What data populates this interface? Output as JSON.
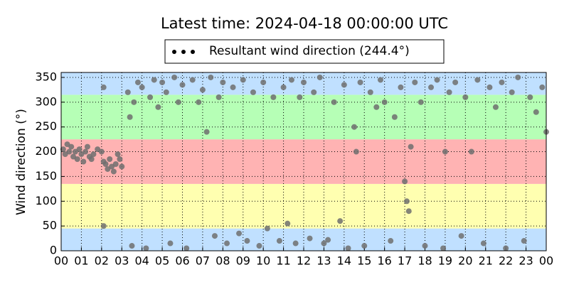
{
  "chart_data": {
    "type": "scatter",
    "title": "Latest time: 2024-04-18 00:00:00 UTC",
    "y_label": "Wind direction (°)",
    "xlim": [
      0,
      24
    ],
    "ylim": [
      0,
      360
    ],
    "xticks": [
      {
        "value": 0,
        "label": "00"
      },
      {
        "value": 1,
        "label": "01"
      },
      {
        "value": 2,
        "label": "02"
      },
      {
        "value": 3,
        "label": "03"
      },
      {
        "value": 4,
        "label": "04"
      },
      {
        "value": 5,
        "label": "05"
      },
      {
        "value": 6,
        "label": "06"
      },
      {
        "value": 7,
        "label": "07"
      },
      {
        "value": 8,
        "label": "08"
      },
      {
        "value": 9,
        "label": "09"
      },
      {
        "value": 10,
        "label": "10"
      },
      {
        "value": 11,
        "label": "11"
      },
      {
        "value": 12,
        "label": "12"
      },
      {
        "value": 13,
        "label": "13"
      },
      {
        "value": 14,
        "label": "14"
      },
      {
        "value": 15,
        "label": "15"
      },
      {
        "value": 16,
        "label": "16"
      },
      {
        "value": 17,
        "label": "17"
      },
      {
        "value": 18,
        "label": "18"
      },
      {
        "value": 19,
        "label": "19"
      },
      {
        "value": 20,
        "label": "20"
      },
      {
        "value": 21,
        "label": "21"
      },
      {
        "value": 22,
        "label": "22"
      },
      {
        "value": 23,
        "label": "23"
      },
      {
        "value": 24,
        "label": "00"
      }
    ],
    "yticks": [
      0,
      50,
      100,
      150,
      200,
      250,
      300,
      350
    ],
    "grid": true,
    "legend": "upper center",
    "bands": [
      {
        "from": 0,
        "to": 45,
        "color": "#c0e0ff"
      },
      {
        "from": 45,
        "to": 135,
        "color": "#ffffb0"
      },
      {
        "from": 135,
        "to": 225,
        "color": "#ffb3b3"
      },
      {
        "from": 225,
        "to": 315,
        "color": "#b6ffb6"
      },
      {
        "from": 315,
        "to": 360,
        "color": "#c0e0ff"
      }
    ],
    "series": [
      {
        "name": "Resultant wind direction (244.4°)",
        "color": "#6e6e6e",
        "x": [
          0.1,
          0.2,
          0.3,
          0.4,
          0.5,
          0.6,
          0.7,
          0.8,
          0.9,
          1.0,
          1.1,
          1.2,
          1.3,
          1.4,
          1.5,
          1.6,
          1.8,
          2.0,
          2.1,
          2.2,
          2.3,
          2.4,
          2.5,
          2.6,
          2.7,
          2.8,
          2.9,
          3.0,
          2.1,
          2.1,
          3.3,
          3.4,
          3.5,
          3.6,
          3.8,
          4.0,
          4.2,
          4.4,
          4.6,
          4.8,
          5.0,
          5.2,
          5.4,
          5.6,
          5.8,
          6.0,
          6.2,
          6.5,
          6.8,
          7.0,
          7.2,
          7.4,
          7.6,
          7.8,
          8.0,
          8.2,
          8.5,
          8.8,
          9.0,
          9.2,
          9.5,
          9.8,
          10.0,
          10.2,
          10.5,
          10.8,
          11.0,
          11.2,
          11.4,
          11.6,
          11.8,
          12.0,
          12.3,
          12.5,
          12.8,
          13.0,
          13.2,
          13.5,
          13.8,
          14.0,
          14.2,
          14.5,
          14.6,
          14.8,
          15.0,
          15.3,
          15.6,
          15.8,
          16.0,
          16.3,
          16.5,
          16.8,
          17.0,
          17.1,
          17.2,
          17.3,
          17.5,
          17.8,
          18.0,
          18.3,
          18.6,
          18.9,
          19.0,
          19.2,
          19.5,
          19.8,
          20.0,
          20.3,
          20.6,
          20.9,
          21.2,
          21.5,
          21.8,
          22.0,
          22.3,
          22.6,
          22.9,
          23.2,
          23.5,
          23.8,
          24.0
        ],
        "values": [
          205,
          195,
          215,
          200,
          210,
          190,
          200,
          185,
          205,
          195,
          180,
          200,
          210,
          190,
          185,
          195,
          205,
          200,
          180,
          175,
          165,
          185,
          170,
          160,
          175,
          195,
          185,
          170,
          330,
          50,
          320,
          270,
          10,
          300,
          340,
          330,
          5,
          310,
          345,
          290,
          340,
          320,
          15,
          350,
          300,
          335,
          5,
          345,
          300,
          325,
          240,
          350,
          30,
          310,
          340,
          15,
          330,
          35,
          345,
          20,
          320,
          10,
          340,
          45,
          310,
          20,
          330,
          55,
          345,
          15,
          310,
          340,
          25,
          320,
          350,
          15,
          22,
          300,
          60,
          335,
          5,
          250,
          200,
          340,
          10,
          320,
          290,
          345,
          300,
          20,
          270,
          330,
          140,
          100,
          80,
          210,
          340,
          300,
          10,
          330,
          345,
          5,
          200,
          320,
          340,
          30,
          310,
          200,
          345,
          15,
          330,
          290,
          340,
          5,
          320,
          350,
          20,
          310,
          280,
          330,
          240
        ]
      }
    ]
  }
}
